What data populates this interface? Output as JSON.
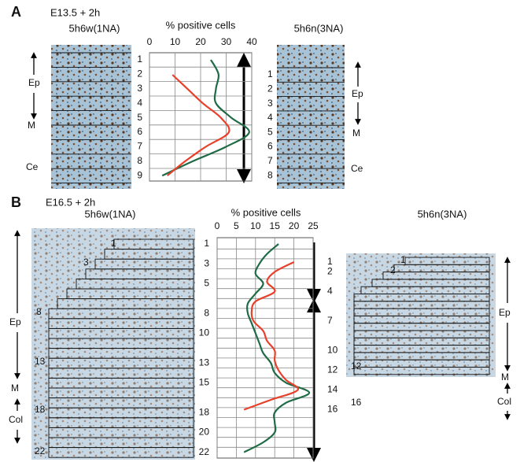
{
  "chart_data": [
    {
      "type": "line",
      "panel": "A",
      "subtitle": "E13.5 + 2h",
      "title": "% positive cells",
      "xlim": [
        0,
        40
      ],
      "xticks": [
        0,
        10,
        20,
        30,
        40
      ],
      "left_zones": [
        "Ep",
        "M",
        "Ce"
      ],
      "right_zones": [
        "Ep",
        "M",
        "Ce"
      ],
      "series": [
        {
          "name": "5h6w(1NA)",
          "color": "#1f6b45",
          "heading_color": "#2f9e63",
          "categories": [
            "1",
            "2",
            "3",
            "4",
            "5",
            "6",
            "7",
            "8",
            "9"
          ],
          "values": [
            24,
            27,
            26,
            26,
            32,
            39,
            30,
            17,
            5
          ]
        },
        {
          "name": "5h6n(3NA)",
          "color": "#e8402a",
          "heading_color": "#e8402a",
          "categories": [
            "1",
            "2",
            "3",
            "4",
            "5",
            "6",
            "7",
            "8"
          ],
          "values": [
            9,
            15,
            21,
            28,
            31,
            22,
            14,
            7
          ]
        }
      ]
    },
    {
      "type": "line",
      "panel": "B",
      "subtitle": "E16.5 + 2h",
      "title": "% positive cells",
      "xlim": [
        0,
        25
      ],
      "xticks": [
        0,
        5,
        10,
        15,
        20,
        25
      ],
      "left_zones": [
        "Ep",
        "M",
        "Col"
      ],
      "right_zones": [
        "Ep",
        "M",
        "Col"
      ],
      "left_image_rows": [
        "1",
        "3",
        "8",
        "13",
        "18",
        "22"
      ],
      "right_image_rows": [
        "1",
        "2",
        "12",
        "16"
      ],
      "series": [
        {
          "name": "5h6w(1NA)",
          "color": "#1f6b45",
          "heading_color": "#1f6b45",
          "categories": [
            "1",
            null,
            "3",
            null,
            "5",
            null,
            null,
            "8",
            null,
            "10",
            null,
            null,
            "13",
            null,
            "15",
            null,
            null,
            "18",
            null,
            "20",
            null,
            "22"
          ],
          "values": [
            16,
            13,
            11,
            10,
            12,
            10,
            8,
            8,
            9,
            10,
            11,
            12,
            14,
            15,
            18,
            24,
            18,
            15,
            15,
            15,
            12,
            7
          ]
        },
        {
          "name": "5h6n(3NA)",
          "color": "#e8402a",
          "heading_color": "#e8402a",
          "categories": [
            "1",
            "2",
            null,
            "4",
            null,
            null,
            "7",
            null,
            null,
            "10",
            null,
            "12",
            null,
            "14",
            null,
            "16"
          ],
          "values": [
            20,
            15,
            13,
            15,
            10,
            9,
            9.5,
            12,
            13,
            15,
            15,
            16,
            18,
            21,
            14,
            7
          ]
        }
      ]
    }
  ]
}
